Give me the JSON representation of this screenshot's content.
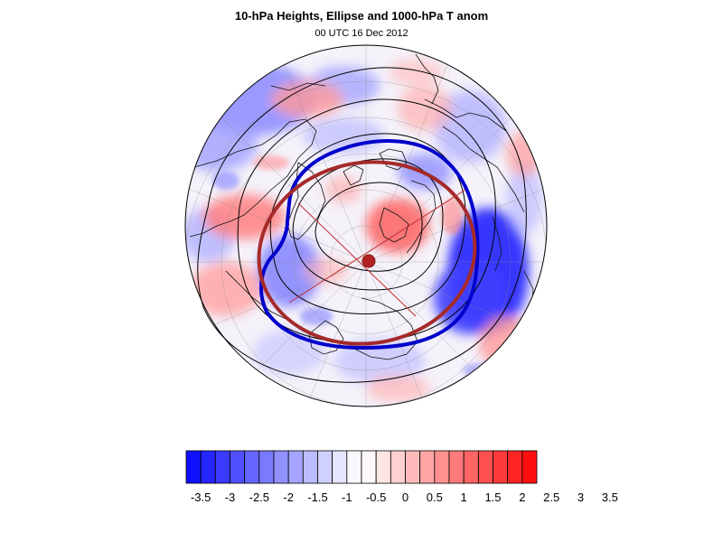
{
  "title": "10-hPa Heights, Ellipse and 1000-hPa T anom",
  "subtitle": "00 UTC 16 Dec 2012",
  "colorbar": {
    "labels": [
      "-3.5",
      "-3",
      "-2.5",
      "-2",
      "-1.5",
      "-1",
      "-0.5",
      "0",
      "0.5",
      "1",
      "1.5",
      "2",
      "2.5",
      "3",
      "3.5"
    ],
    "colors": [
      "#1010ff",
      "#2525ff",
      "#3a3aff",
      "#5050ff",
      "#6565ff",
      "#7a7aff",
      "#9090ff",
      "#a5a5ff",
      "#bbbbff",
      "#d0d0ff",
      "#e6e6ff",
      "#f8f8ff",
      "#fff8f8",
      "#ffe6e6",
      "#ffd0d0",
      "#ffbbbb",
      "#ffa5a5",
      "#ff9090",
      "#ff7a7a",
      "#ff6565",
      "#ff5050",
      "#ff3a3a",
      "#ff2525",
      "#ff1010"
    ]
  },
  "colors": {
    "vortex_edge": "#0000cc",
    "ellipse": "#a52a2a",
    "height_contours": "#000000",
    "warm": "#ff5050",
    "cold": "#5050ff"
  }
}
